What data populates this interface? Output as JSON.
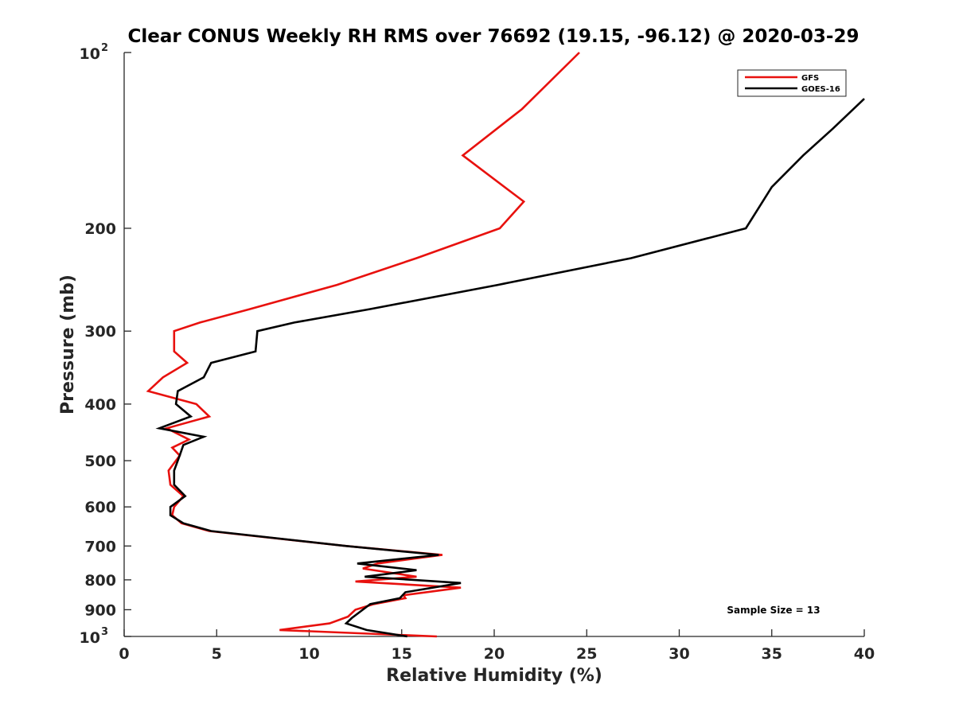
{
  "chart_data": {
    "type": "line",
    "title": "Clear CONUS Weekly RH RMS over 76692 (19.15, -96.12) @ 2020-03-29",
    "xlabel": "Relative Humidity (%)",
    "ylabel": "Pressure (mb)",
    "xlim": [
      0,
      40
    ],
    "ylim": [
      100,
      1000
    ],
    "yscale": "log",
    "yreverse": true,
    "grid": false,
    "legend_position": "top-right",
    "x_ticks": [
      "0",
      "5",
      "10",
      "15",
      "20",
      "25",
      "30",
      "35",
      "40"
    ],
    "x_tick_values": [
      0,
      5,
      10,
      15,
      20,
      25,
      30,
      35,
      40
    ],
    "y_ticks": [
      {
        "value": 100,
        "base": "10",
        "exp": "2"
      },
      {
        "value": 200,
        "label": "200"
      },
      {
        "value": 300,
        "label": "300"
      },
      {
        "value": 400,
        "label": "400"
      },
      {
        "value": 500,
        "label": "500"
      },
      {
        "value": 600,
        "label": "600"
      },
      {
        "value": 700,
        "label": "700"
      },
      {
        "value": 800,
        "label": "800"
      },
      {
        "value": 900,
        "label": "900"
      },
      {
        "value": 1000,
        "base": "10",
        "exp": "3"
      }
    ],
    "series": [
      {
        "name": "GFS",
        "color": "#e8110e",
        "points": [
          [
            24.6,
            100
          ],
          [
            21.5,
            125
          ],
          [
            18.3,
            150
          ],
          [
            21.6,
            180
          ],
          [
            20.3,
            200
          ],
          [
            15.8,
            225
          ],
          [
            11.5,
            250
          ],
          [
            6.8,
            275
          ],
          [
            4.1,
            290
          ],
          [
            2.7,
            300
          ],
          [
            2.7,
            325
          ],
          [
            3.4,
            340
          ],
          [
            2.1,
            360
          ],
          [
            1.3,
            380
          ],
          [
            3.9,
            400
          ],
          [
            4.6,
            420
          ],
          [
            2.3,
            440
          ],
          [
            3.5,
            460
          ],
          [
            2.6,
            475
          ],
          [
            3.0,
            490
          ],
          [
            2.4,
            520
          ],
          [
            2.5,
            550
          ],
          [
            3.2,
            575
          ],
          [
            2.7,
            600
          ],
          [
            2.6,
            620
          ],
          [
            3.1,
            640
          ],
          [
            4.6,
            660
          ],
          [
            12.0,
            700
          ],
          [
            17.2,
            725
          ],
          [
            13.7,
            750
          ],
          [
            12.9,
            765
          ],
          [
            15.8,
            790
          ],
          [
            12.5,
            805
          ],
          [
            18.2,
            825
          ],
          [
            15.1,
            850
          ],
          [
            15.2,
            860
          ],
          [
            13.5,
            880
          ],
          [
            12.5,
            900
          ],
          [
            12.1,
            925
          ],
          [
            11.1,
            950
          ],
          [
            8.4,
            975
          ],
          [
            16.9,
            1000
          ]
        ]
      },
      {
        "name": "GOES-16",
        "color": "#000000",
        "points": [
          [
            40.0,
            120
          ],
          [
            38.3,
            135
          ],
          [
            36.7,
            150
          ],
          [
            35.0,
            170
          ],
          [
            33.6,
            200
          ],
          [
            27.4,
            225
          ],
          [
            20.2,
            250
          ],
          [
            13.3,
            275
          ],
          [
            9.2,
            290
          ],
          [
            7.2,
            300
          ],
          [
            7.1,
            325
          ],
          [
            4.7,
            340
          ],
          [
            4.3,
            360
          ],
          [
            2.9,
            380
          ],
          [
            2.8,
            400
          ],
          [
            3.6,
            420
          ],
          [
            1.9,
            440
          ],
          [
            4.3,
            455
          ],
          [
            3.2,
            470
          ],
          [
            3.0,
            490
          ],
          [
            2.7,
            520
          ],
          [
            2.7,
            550
          ],
          [
            3.3,
            575
          ],
          [
            2.5,
            600
          ],
          [
            2.5,
            620
          ],
          [
            3.2,
            640
          ],
          [
            4.7,
            660
          ],
          [
            12.0,
            700
          ],
          [
            17.0,
            725
          ],
          [
            12.6,
            750
          ],
          [
            15.8,
            770
          ],
          [
            13.0,
            790
          ],
          [
            18.2,
            810
          ],
          [
            15.2,
            840
          ],
          [
            14.9,
            860
          ],
          [
            13.3,
            880
          ],
          [
            12.9,
            900
          ],
          [
            12.3,
            930
          ],
          [
            12.0,
            950
          ],
          [
            13.1,
            975
          ],
          [
            15.3,
            1000
          ]
        ]
      }
    ],
    "annotation": "Sample Size = 13"
  }
}
